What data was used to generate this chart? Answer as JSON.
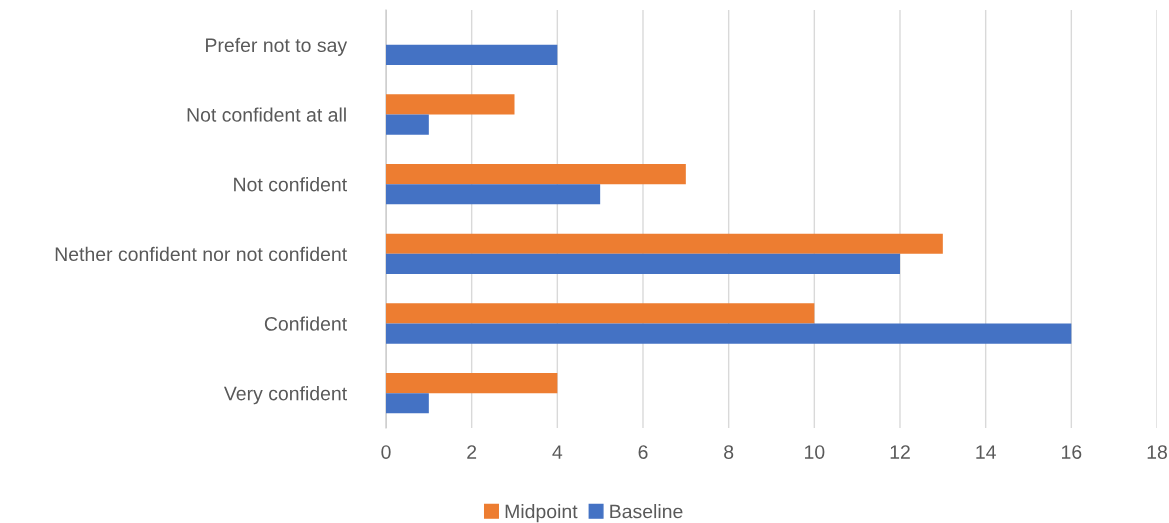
{
  "chart_data": {
    "type": "bar",
    "orientation": "horizontal",
    "categories": [
      "Prefer not to say",
      "Not confident at all",
      "Not confident",
      "Nether confident nor not confident",
      "Confident",
      "Very confident"
    ],
    "series": [
      {
        "name": "Midpoint",
        "color": "#ed7d31",
        "values": [
          null,
          3,
          7,
          13,
          10,
          4
        ]
      },
      {
        "name": "Baseline",
        "color": "#4472c4",
        "values": [
          4,
          1,
          5,
          12,
          16,
          1
        ]
      }
    ],
    "xlim": [
      0,
      18
    ],
    "xticks": [
      0,
      2,
      4,
      6,
      8,
      10,
      12,
      14,
      16,
      18
    ],
    "grid": "x",
    "legend": "bottom"
  }
}
